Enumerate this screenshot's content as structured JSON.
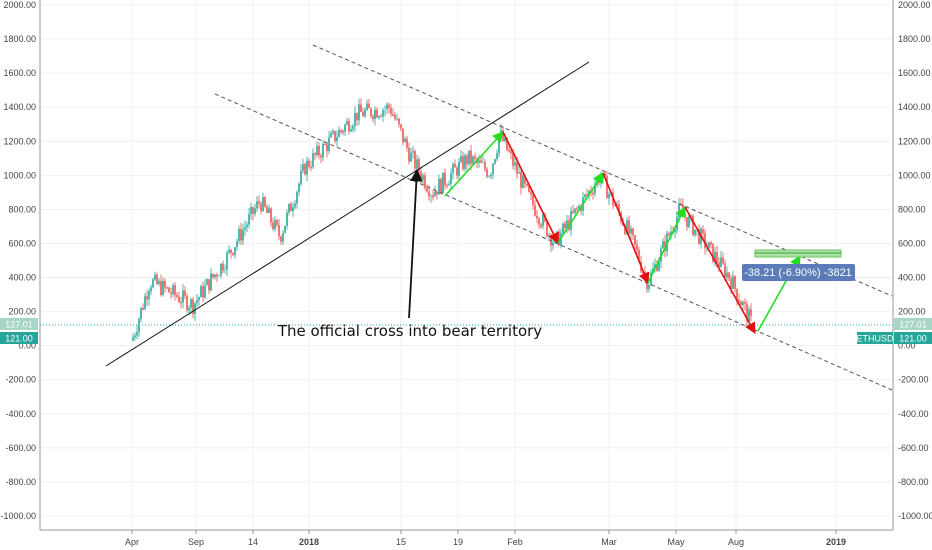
{
  "chart_data": {
    "type": "candlestick",
    "symbol": "ETHUSD",
    "ylim": [
      -1000,
      2000
    ],
    "y_ticks": [
      "2000.00",
      "1800.00",
      "1600.00",
      "1400.00",
      "1200.00",
      "1000.00",
      "800.00",
      "600.00",
      "400.00",
      "200.00",
      "0.00",
      "-200.00",
      "-400.00",
      "-600.00",
      "-800.00",
      "-1000.00"
    ],
    "x_ticks": [
      "Apr",
      "Sep",
      "14",
      "2018",
      "15",
      "19",
      "Feb",
      "Mar",
      "May",
      "Aug",
      "2019"
    ],
    "price_series": [
      {
        "date": "Apr",
        "value": 30
      },
      {
        "date": "Apr+",
        "value": 380
      },
      {
        "date": "Sep",
        "value": 240
      },
      {
        "date": "Oct",
        "value": 500
      },
      {
        "date": "14",
        "value": 850
      },
      {
        "date": "Dec",
        "value": 640
      },
      {
        "date": "Dec+",
        "value": 1050
      },
      {
        "date": "2018",
        "value": 1200
      },
      {
        "date": "2018+",
        "value": 1360
      },
      {
        "date": "Jan",
        "value": 1400
      },
      {
        "date": "15",
        "value": 1120
      },
      {
        "date": "15+",
        "value": 900
      },
      {
        "date": "19",
        "value": 1100
      },
      {
        "date": "Jan+",
        "value": 1020
      },
      {
        "date": "Feb",
        "value": 1240
      },
      {
        "date": "Feb+",
        "value": 880
      },
      {
        "date": "Feb++",
        "value": 600
      },
      {
        "date": "Mar",
        "value": 1000
      },
      {
        "date": "Mar+",
        "value": 650
      },
      {
        "date": "Apr-",
        "value": 370
      },
      {
        "date": "May",
        "value": 800
      },
      {
        "date": "Jun",
        "value": 560
      },
      {
        "date": "Aug",
        "value": 400
      },
      {
        "date": "Aug+",
        "value": 110
      }
    ],
    "current_price_label": "121.00",
    "current_price_value": 121.0,
    "second_price_label": "127.01",
    "second_price_value": 127.01,
    "axis_symbol_label": "ETHUSD",
    "annotation": "The official cross into bear territory",
    "measure_label": "-38.21 (-6.90%) -3821",
    "colors": {
      "up": "#26a69a",
      "down": "#ef5350",
      "price_line": "#26a69a",
      "arrow_up": "#22dd22",
      "arrow_down": "#dd1111",
      "channel": "#555555",
      "trendline": "#111111",
      "measure_box": "#5b7cb8",
      "target_fill": "#a8e6a0"
    }
  }
}
